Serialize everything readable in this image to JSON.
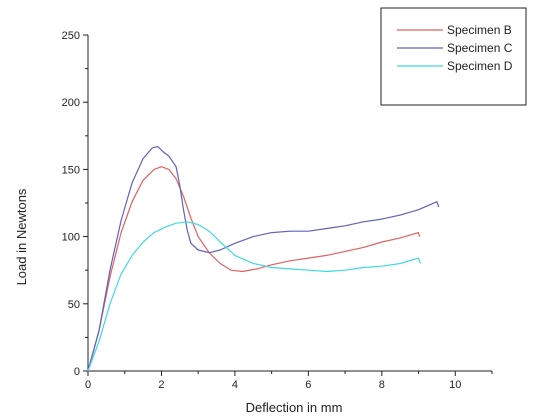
{
  "chart_data": {
    "type": "line",
    "title": "",
    "xlabel": "Deflection in mm",
    "ylabel": "Load in Newtons",
    "xlim": [
      0,
      11
    ],
    "ylim": [
      0,
      250
    ],
    "xticks": [
      0,
      2,
      4,
      6,
      8,
      10
    ],
    "yticks": [
      0,
      50,
      100,
      150,
      200,
      250
    ],
    "grid": false,
    "legend_position": "top-right",
    "series": [
      {
        "name": "Specimen B",
        "color": "#e06060",
        "x": [
          0,
          0.3,
          0.6,
          0.9,
          1.2,
          1.5,
          1.8,
          2.0,
          2.2,
          2.4,
          2.6,
          2.8,
          3.0,
          3.3,
          3.6,
          3.9,
          4.2,
          4.6,
          5.0,
          5.5,
          6.0,
          6.5,
          7.0,
          7.5,
          8.0,
          8.5,
          9.0,
          9.03
        ],
        "y": [
          0,
          30,
          70,
          103,
          126,
          142,
          150,
          152,
          150,
          143,
          130,
          114,
          100,
          88,
          80,
          75,
          74,
          76,
          79,
          82,
          84,
          86,
          89,
          92,
          96,
          99,
          103,
          100
        ]
      },
      {
        "name": "Specimen C",
        "color": "#6060c0",
        "x": [
          0,
          0.3,
          0.6,
          0.9,
          1.2,
          1.5,
          1.75,
          1.9,
          2.05,
          2.2,
          2.4,
          2.5,
          2.6,
          2.7,
          2.8,
          3.0,
          3.3,
          3.6,
          4.0,
          4.5,
          5.0,
          5.5,
          6.0,
          6.5,
          7.0,
          7.5,
          8.0,
          8.5,
          9.0,
          9.5,
          9.55
        ],
        "y": [
          0,
          30,
          75,
          112,
          140,
          158,
          166,
          167,
          163,
          160,
          152,
          138,
          120,
          105,
          95,
          90,
          88,
          90,
          95,
          100,
          103,
          104,
          104,
          106,
          108,
          111,
          113,
          116,
          120,
          126,
          122
        ]
      },
      {
        "name": "Specimen D",
        "color": "#40d8e8",
        "x": [
          0,
          0.3,
          0.6,
          0.9,
          1.2,
          1.5,
          1.8,
          2.1,
          2.4,
          2.7,
          3.0,
          3.3,
          3.6,
          4.0,
          4.5,
          5.0,
          5.5,
          6.0,
          6.5,
          7.0,
          7.5,
          8.0,
          8.5,
          9.0,
          9.05
        ],
        "y": [
          0,
          22,
          50,
          72,
          86,
          96,
          103,
          107,
          110,
          111,
          109,
          104,
          96,
          86,
          80,
          77,
          76,
          75,
          74,
          75,
          77,
          78,
          80,
          84,
          80
        ]
      }
    ]
  }
}
